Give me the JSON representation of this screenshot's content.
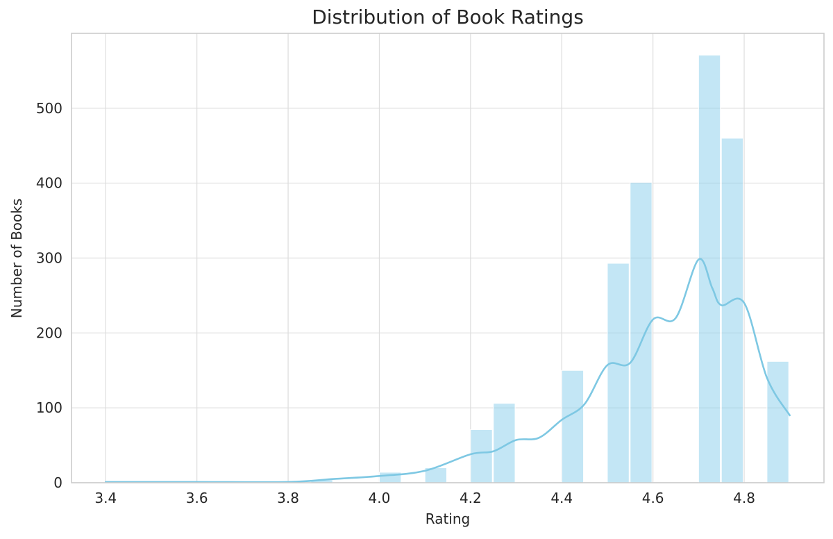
{
  "chart_data": {
    "type": "bar",
    "subtype": "histogram_with_kde",
    "title": "Distribution of Book Ratings",
    "xlabel": "Rating",
    "ylabel": "Number of Books",
    "xlim": [
      3.325,
      4.975
    ],
    "ylim": [
      0,
      600
    ],
    "xticks": [
      "3.4",
      "3.6",
      "3.8",
      "4.0",
      "4.2",
      "4.4",
      "4.6",
      "4.8"
    ],
    "xtick_values": [
      3.4,
      3.6,
      3.8,
      4.0,
      4.2,
      4.4,
      4.6,
      4.8
    ],
    "yticks": [
      "0",
      "100",
      "200",
      "300",
      "400",
      "500"
    ],
    "ytick_values": [
      0,
      100,
      200,
      300,
      400,
      500
    ],
    "grid": true,
    "legend": null,
    "bin_width": 0.05,
    "bins": [
      {
        "start": 3.4,
        "count": 1
      },
      {
        "start": 3.85,
        "count": 4
      },
      {
        "start": 4.0,
        "count": 14
      },
      {
        "start": 4.1,
        "count": 20
      },
      {
        "start": 4.2,
        "count": 71
      },
      {
        "start": 4.25,
        "count": 106
      },
      {
        "start": 4.4,
        "count": 150
      },
      {
        "start": 4.5,
        "count": 293
      },
      {
        "start": 4.55,
        "count": 401
      },
      {
        "start": 4.7,
        "count": 571
      },
      {
        "start": 4.75,
        "count": 460
      },
      {
        "start": 4.85,
        "count": 162
      }
    ],
    "categories": [
      "3.40",
      "3.85",
      "4.00",
      "4.10",
      "4.20",
      "4.25",
      "4.40",
      "4.50",
      "4.55",
      "4.70",
      "4.75",
      "4.85"
    ],
    "values": [
      1,
      4,
      14,
      20,
      71,
      106,
      150,
      293,
      401,
      571,
      460,
      162
    ],
    "kde": {
      "x": [
        3.4,
        3.6,
        3.8,
        3.9,
        4.0,
        4.1,
        4.2,
        4.25,
        4.3,
        4.35,
        4.4,
        4.45,
        4.5,
        4.55,
        4.6,
        4.65,
        4.7,
        4.73,
        4.75,
        4.8,
        4.85,
        4.9
      ],
      "y": [
        1,
        1,
        1,
        5,
        9,
        16,
        38,
        42,
        57,
        60,
        84,
        105,
        157,
        160,
        218,
        220,
        298,
        260,
        237,
        240,
        140,
        90
      ]
    },
    "colors": {
      "bar": "#87CEEB",
      "bar_alpha": 0.5,
      "kde": "#7EC8E3"
    }
  }
}
